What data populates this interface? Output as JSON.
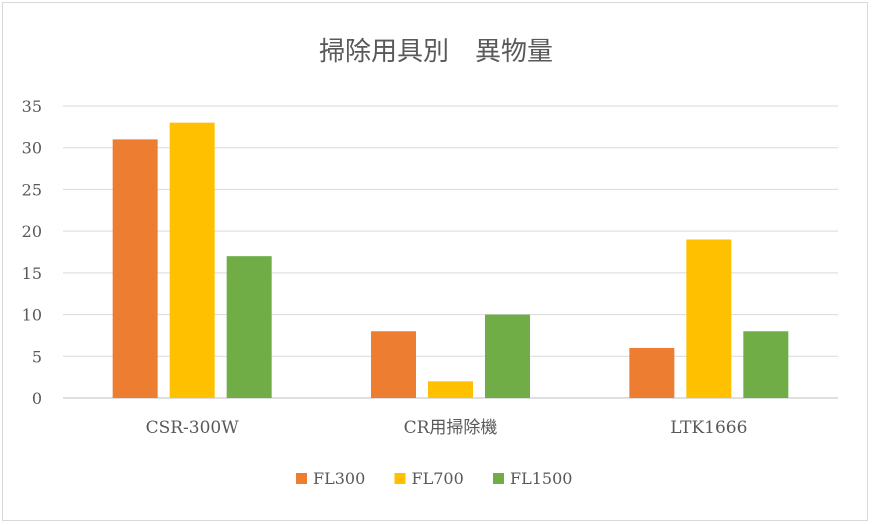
{
  "chart_data": {
    "type": "bar",
    "title": "掃除用具別　異物量",
    "categories": [
      "CSR-300W",
      "CR用掃除機",
      "LTK1666"
    ],
    "series": [
      {
        "name": "FL300",
        "color": "#ED7D31",
        "values": [
          31,
          8,
          6
        ]
      },
      {
        "name": "FL700",
        "color": "#FFC000",
        "values": [
          33,
          2,
          19
        ]
      },
      {
        "name": "FL1500",
        "color": "#70AD47",
        "values": [
          17,
          10,
          8
        ]
      }
    ],
    "ylim": [
      0,
      35
    ],
    "yticks": [
      0,
      5,
      10,
      15,
      20,
      25,
      30,
      35
    ],
    "grid": true,
    "legend_position": "bottom"
  }
}
